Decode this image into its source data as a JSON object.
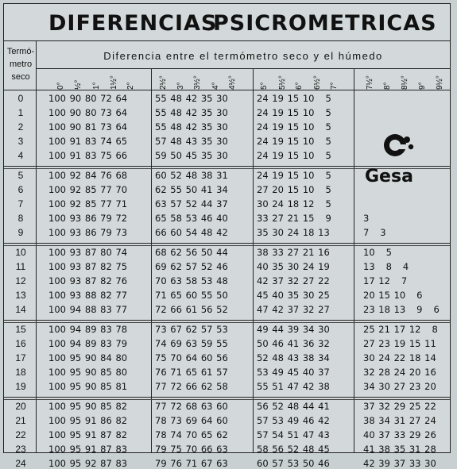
{
  "title": {
    "word1": "DIFERENCIAS",
    "word2": "PSICROMETRICAS"
  },
  "header": {
    "termo_lines": [
      "Termó-",
      "metro",
      "seco"
    ],
    "diff_label": "Diferencia entre el termómetro seco y el húmedo",
    "degrees": [
      "0°",
      "½°",
      "1°",
      "1½°",
      "2°",
      "2½°",
      "3°",
      "3½°",
      "4°",
      "4½°",
      "5°",
      "5½°",
      "6°",
      "6½°",
      "7°",
      "7½°",
      "8°",
      "8½°",
      "9°",
      "9½°"
    ]
  },
  "logo": {
    "text": "Gesa",
    "icon": "gesa-logo-icon"
  },
  "rows": [
    {
      "t": "0",
      "a": "100 90 80 72 64",
      "b": "55 48 42 35 30",
      "c": "24 19 15 10   5",
      "d": ""
    },
    {
      "t": "1",
      "a": "100 90 80 73 64",
      "b": "55 48 42 35 30",
      "c": "24 19 15 10   5",
      "d": ""
    },
    {
      "t": "2",
      "a": "100 90 81 73 64",
      "b": "55 48 42 35 30",
      "c": "24 19 15 10   5",
      "d": ""
    },
    {
      "t": "3",
      "a": "100 91 83 74 65",
      "b": "57 48 43 35 30",
      "c": "24 19 15 10   5",
      "d": ""
    },
    {
      "t": "4",
      "a": "100 91 83 75 66",
      "b": "59 50 45 35 30",
      "c": "24 19 15 10   5",
      "d": ""
    },
    {
      "t": "5",
      "a": "100 92 84 76 68",
      "b": "60 52 48 38 31",
      "c": "24 19 15 10   5",
      "d": ""
    },
    {
      "t": "6",
      "a": "100 92 85 77 70",
      "b": "62 55 50 41 34",
      "c": "27 20 15 10   5",
      "d": ""
    },
    {
      "t": "7",
      "a": "100 92 85 77 71",
      "b": "63 57 52 44 37",
      "c": "30 24 18 12   5",
      "d": ""
    },
    {
      "t": "8",
      "a": "100 93 86 79 72",
      "b": "65 58 53 46 40",
      "c": "33 27 21 15   9",
      "d": "3"
    },
    {
      "t": "9",
      "a": "100 93 86 79 73",
      "b": "66 60 54 48 42",
      "c": "35 30 24 18 13",
      "d": "7   3"
    },
    {
      "t": "10",
      "a": "100 93 87 80 74",
      "b": "68 62 56 50 44",
      "c": "38 33 27 21 16",
      "d": "10   5"
    },
    {
      "t": "11",
      "a": "100 93 87 82 75",
      "b": "69 62 57 52 46",
      "c": "40 35 30 24 19",
      "d": "13   8   4"
    },
    {
      "t": "12",
      "a": "100 93 87 82 76",
      "b": "70 63 58 53 48",
      "c": "42 37 32 27 22",
      "d": "17 12   7"
    },
    {
      "t": "13",
      "a": "100 93 88 82 77",
      "b": "71 65 60 55 50",
      "c": "45 40 35 30 25",
      "d": "20 15 10   6"
    },
    {
      "t": "14",
      "a": "100 94 88 83 77",
      "b": "72 66 61 56 52",
      "c": "47 42 37 32 27",
      "d": "23 18 13   9   6"
    },
    {
      "t": "15",
      "a": "100 94 89 83 78",
      "b": "73 67 62 57 53",
      "c": "49 44 39 34 30",
      "d": "25 21 17 12   8"
    },
    {
      "t": "16",
      "a": "100 94 89 83 79",
      "b": "74 69 63 59 55",
      "c": "50 46 41 36 32",
      "d": "27 23 19 15 11"
    },
    {
      "t": "17",
      "a": "100 95 90 84 80",
      "b": "75 70 64 60 56",
      "c": "52 48 43 38 34",
      "d": "30 24 22 18 14"
    },
    {
      "t": "18",
      "a": "100 95 90 85 80",
      "b": "76 71 65 61 57",
      "c": "53 49 45 40 37",
      "d": "32 28 24 20 16"
    },
    {
      "t": "19",
      "a": "100 95 90 85 81",
      "b": "77 72 66 62 58",
      "c": "55 51 47 42 38",
      "d": "34 30 27 23 20"
    },
    {
      "t": "20",
      "a": "100 95 90 85 82",
      "b": "77 72 68 63 60",
      "c": "56 52 48 44 41",
      "d": "37 32 29 25 22"
    },
    {
      "t": "21",
      "a": "100 95 91 86 82",
      "b": "78 73 69 64 60",
      "c": "57 53 49 46 42",
      "d": "38 34 31 27 24"
    },
    {
      "t": "22",
      "a": "100 95 91 87 82",
      "b": "78 74 70 65 62",
      "c": "57 54 51 47 43",
      "d": "40 37 33 29 26"
    },
    {
      "t": "23",
      "a": "100 95 91 87 83",
      "b": "79 75 70 66 63",
      "c": "58 56 52 48 45",
      "d": "41 38 35 31 28"
    },
    {
      "t": "24",
      "a": "100 95 92 87 83",
      "b": "79 76 71 67 63",
      "c": "60 57 53 50 46",
      "d": "42 39 37 33 30"
    }
  ]
}
